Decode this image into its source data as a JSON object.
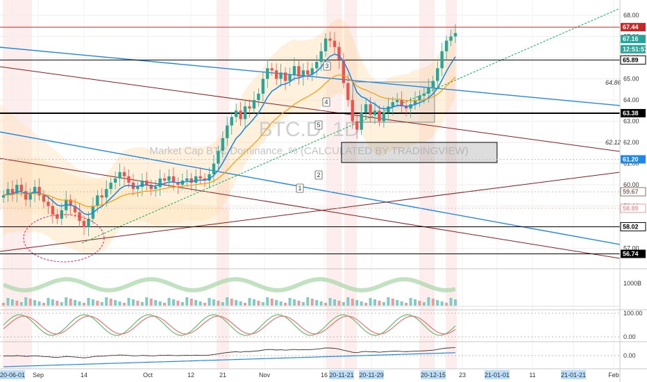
{
  "chart_data": {
    "type": "candlestick",
    "title": "",
    "watermark_symbol": "BTC.D, 1D",
    "watermark_name": "Market Cap BTC Dominance, % (CALCULATED BY TRADINGVIEW)",
    "y_range": [
      56.5,
      68.5
    ],
    "y_ticks": [
      57.0,
      58.0,
      59.0,
      60.0,
      61.0,
      62.0,
      63.0,
      64.0,
      65.0,
      66.0,
      67.0,
      68.0
    ],
    "y_tick_labels": [
      "57.00",
      "58.00",
      "59.00",
      "60.00",
      "61.00",
      "62.00",
      "63.00",
      "64.00",
      "65.00",
      "66.00",
      "67.00",
      "68.00"
    ],
    "x_tick_labels": [
      "20-06-01",
      "Sep",
      "14",
      "Oct",
      "12",
      "21",
      "Nov",
      "16",
      "20-11-21",
      "20-11-29",
      "20-12-15",
      "23",
      "21-01-01",
      "11",
      "21-01-21",
      "Feb"
    ],
    "highlighted_x_labels": [
      "20-06-01",
      "20-11-21",
      "20-11-29",
      "20-12-15",
      "21-01-01",
      "21-01-21"
    ],
    "price_labels": [
      {
        "value": "67.44",
        "color": "#c62828"
      },
      {
        "value": "67.16",
        "color": "#26a69a"
      },
      {
        "value": "12:51:57",
        "color": "#26a69a"
      },
      {
        "value": "65.89",
        "color": "#000000"
      },
      {
        "value": "63.38",
        "color": "#000000"
      },
      {
        "value": "61.20",
        "color": "#1e88e5"
      },
      {
        "value": "59.67",
        "color": "#8d6e63"
      },
      {
        "value": "58.89",
        "color": "#ef9a9a"
      },
      {
        "value": "58.02",
        "color": "#000000"
      },
      {
        "value": "56.74",
        "color": "#000000"
      }
    ],
    "horizontal_levels": [
      67.44,
      65.89,
      63.38,
      58.02,
      56.74
    ],
    "level_annotations": [
      "64.86",
      "62.12"
    ],
    "wave_labels": [
      "1",
      "2",
      "3",
      "4",
      "5"
    ],
    "close_series": [
      59.5,
      59.8,
      59.6,
      60.0,
      59.7,
      59.3,
      59.6,
      59.9,
      59.5,
      59.2,
      59.0,
      58.6,
      58.4,
      58.8,
      59.3,
      59.0,
      58.7,
      58.3,
      58.0,
      58.4,
      59.0,
      59.5,
      59.4,
      59.8,
      60.1,
      60.3,
      60.6,
      60.4,
      60.1,
      59.8,
      59.9,
      60.2,
      60.0,
      59.8,
      59.9,
      60.3,
      60.2,
      60.4,
      60.1,
      60.0,
      60.2,
      60.3,
      60.1,
      60.4,
      60.3,
      60.2,
      60.5,
      61.0,
      61.6,
      62.2,
      62.8,
      63.2,
      63.5,
      63.1,
      63.7,
      63.6,
      64.0,
      64.3,
      65.0,
      65.5,
      65.4,
      65.0,
      65.3,
      64.9,
      65.2,
      65.6,
      65.1,
      65.4,
      65.2,
      65.5,
      65.8,
      66.3,
      66.9,
      66.8,
      66.5,
      65.9,
      64.8,
      64.0,
      63.0,
      62.6,
      63.4,
      63.8,
      63.3,
      63.5,
      63.0,
      63.4,
      63.7,
      63.9,
      64.0,
      63.7,
      63.6,
      63.8,
      64.0,
      64.2,
      64.3,
      64.6,
      64.9,
      65.5,
      66.3,
      66.8,
      67.0,
      67.16
    ]
  },
  "oscillator_1": {
    "tick_label": "1000B"
  },
  "oscillator_2": {
    "tick_labels": [
      "100.00",
      "0.00"
    ]
  },
  "oscillator_3": {
    "tick_label": "0.00"
  },
  "colors": {
    "up": "#26a69a",
    "down": "#ef5350",
    "level_line": "#000000",
    "resistance": "#c62828",
    "blue_line": "#1e88e5",
    "brown_line": "#8b1a1a",
    "trend": "#00b050",
    "ema_fast": "#1e88e5",
    "ema_slow": "#ff9800"
  }
}
